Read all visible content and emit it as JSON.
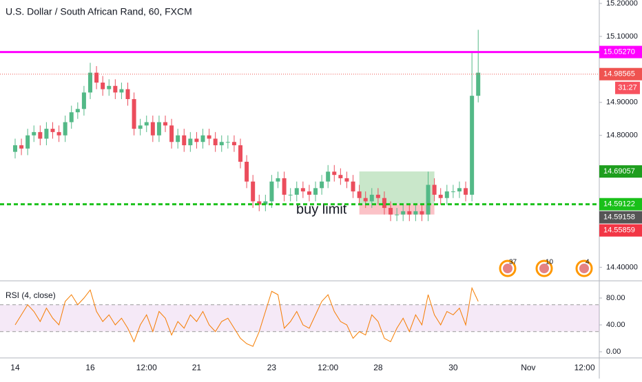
{
  "chart_data": [
    {
      "type": "candlestick",
      "title": "U.S. Dollar / South African Rand, 60, FXCM",
      "x": [
        0,
        1,
        2,
        3,
        4,
        5,
        6,
        7,
        8,
        9,
        10,
        11,
        12,
        13,
        14,
        15,
        16,
        17,
        18,
        19,
        20,
        21,
        22,
        23,
        24,
        25,
        26,
        27,
        28,
        29,
        30,
        31,
        32,
        33,
        34,
        35,
        36,
        37,
        38,
        39,
        40,
        41,
        42,
        43,
        44,
        45,
        46,
        47,
        48,
        49,
        50,
        51,
        52,
        53,
        54,
        55,
        56,
        57,
        58,
        59,
        60,
        61,
        62,
        63,
        64,
        65,
        66,
        67,
        68,
        69,
        70,
        71,
        72,
        73,
        74
      ],
      "open": [
        14.75,
        14.77,
        14.76,
        14.8,
        14.81,
        14.79,
        14.82,
        14.81,
        14.8,
        14.84,
        14.87,
        14.88,
        14.93,
        14.99,
        14.96,
        14.94,
        14.95,
        14.93,
        14.94,
        14.91,
        14.82,
        14.83,
        14.84,
        14.8,
        14.84,
        14.83,
        14.78,
        14.8,
        14.77,
        14.79,
        14.78,
        14.8,
        14.79,
        14.77,
        14.78,
        14.78,
        14.77,
        14.72,
        14.66,
        14.6,
        14.59,
        14.6,
        14.66,
        14.67,
        14.62,
        14.62,
        14.64,
        14.63,
        14.62,
        14.64,
        14.66,
        14.69,
        14.68,
        14.67,
        14.66,
        14.63,
        14.61,
        14.6,
        14.62,
        14.61,
        14.58,
        14.56,
        14.56,
        14.57,
        14.56,
        14.57,
        14.56,
        14.65,
        14.62,
        14.61,
        14.63,
        14.63,
        14.64,
        14.62,
        14.92
      ],
      "high": [
        14.79,
        14.79,
        14.82,
        14.83,
        14.83,
        14.84,
        14.84,
        14.83,
        14.86,
        14.89,
        14.9,
        14.95,
        15.02,
        15.01,
        14.98,
        14.97,
        14.97,
        14.96,
        14.96,
        14.93,
        14.85,
        14.86,
        14.86,
        14.86,
        14.86,
        14.85,
        14.82,
        14.82,
        14.81,
        14.81,
        14.82,
        14.82,
        14.81,
        14.8,
        14.8,
        14.8,
        14.79,
        14.74,
        14.68,
        14.62,
        14.62,
        14.68,
        14.69,
        14.69,
        14.64,
        14.66,
        14.66,
        14.65,
        14.66,
        14.68,
        14.71,
        14.71,
        14.7,
        14.69,
        14.68,
        14.65,
        14.63,
        14.64,
        14.64,
        14.63,
        14.6,
        14.58,
        14.59,
        14.59,
        14.59,
        14.59,
        14.69,
        14.67,
        14.64,
        14.65,
        14.65,
        14.66,
        14.66,
        15.05,
        15.12
      ],
      "low": [
        14.73,
        14.74,
        14.74,
        14.78,
        14.77,
        14.77,
        14.79,
        14.78,
        14.78,
        14.82,
        14.85,
        14.86,
        14.91,
        14.94,
        14.92,
        14.92,
        14.91,
        14.91,
        14.89,
        14.8,
        14.8,
        14.81,
        14.78,
        14.78,
        14.81,
        14.76,
        14.76,
        14.75,
        14.75,
        14.76,
        14.76,
        14.77,
        14.75,
        14.75,
        14.76,
        14.75,
        14.7,
        14.64,
        14.58,
        14.57,
        14.57,
        14.58,
        14.64,
        14.6,
        14.6,
        14.6,
        14.61,
        14.6,
        14.6,
        14.62,
        14.64,
        14.66,
        14.65,
        14.64,
        14.61,
        14.59,
        14.58,
        14.58,
        14.59,
        14.56,
        14.54,
        14.54,
        14.54,
        14.54,
        14.54,
        14.54,
        14.54,
        14.6,
        14.59,
        14.59,
        14.61,
        14.61,
        14.6,
        14.6,
        14.9
      ],
      "close": [
        14.77,
        14.76,
        14.8,
        14.81,
        14.79,
        14.82,
        14.81,
        14.8,
        14.84,
        14.87,
        14.88,
        14.93,
        14.99,
        14.96,
        14.94,
        14.95,
        14.93,
        14.94,
        14.91,
        14.82,
        14.83,
        14.84,
        14.8,
        14.84,
        14.83,
        14.78,
        14.8,
        14.77,
        14.79,
        14.78,
        14.8,
        14.79,
        14.77,
        14.78,
        14.78,
        14.77,
        14.72,
        14.66,
        14.6,
        14.59,
        14.6,
        14.66,
        14.67,
        14.62,
        14.62,
        14.64,
        14.63,
        14.62,
        14.64,
        14.66,
        14.69,
        14.68,
        14.67,
        14.66,
        14.63,
        14.61,
        14.6,
        14.62,
        14.61,
        14.58,
        14.56,
        14.56,
        14.57,
        14.56,
        14.57,
        14.56,
        14.65,
        14.62,
        14.61,
        14.63,
        14.63,
        14.64,
        14.62,
        14.92,
        14.99
      ],
      "up_color": "#53b987",
      "down_color": "#eb4d5c",
      "xlim": [
        -2.42,
        93.35
      ],
      "xticks": [
        {
          "value": 0,
          "label": "14"
        },
        {
          "value": 12,
          "label": "16"
        },
        {
          "value": 21,
          "label": "12:00"
        },
        {
          "value": 29,
          "label": "21"
        },
        {
          "value": 41,
          "label": "23"
        },
        {
          "value": 50,
          "label": "12:00"
        },
        {
          "value": 58,
          "label": "28"
        },
        {
          "value": 70,
          "label": "30"
        },
        {
          "value": 82,
          "label": "Nov"
        },
        {
          "value": 91,
          "label": "12:00"
        }
      ],
      "ylim": [
        14.359,
        15.2104
      ],
      "yticks": [
        {
          "value": 15.2,
          "label": "15.20000"
        },
        {
          "value": 15.1,
          "label": "15.10000"
        },
        {
          "value": 14.9,
          "label": "14.90000"
        },
        {
          "value": 14.8,
          "label": "14.80000"
        },
        {
          "value": 14.4,
          "label": "14.40000"
        }
      ],
      "grid": false,
      "price_tags": [
        {
          "value": 15.0527,
          "label": "15.05270",
          "color": "#ff00ff",
          "line": "solid"
        },
        {
          "value": 14.98565,
          "label": "14.98565",
          "color": "#ef5350",
          "line": "dotted"
        },
        {
          "value": 14.69057,
          "label": "14.69057",
          "color": "#1e9e1e"
        },
        {
          "value": 14.59122,
          "label": "14.59122",
          "color": "#19c019",
          "line": "dashed"
        },
        {
          "value": 14.59158,
          "label": "14.59158",
          "color": "#555555"
        },
        {
          "value": 14.55859,
          "label": "14.55859",
          "color": "#f23645"
        }
      ],
      "countdown": "31:27",
      "position": {
        "x": [
          55,
          67
        ],
        "top": 14.69057,
        "entry": 14.59122,
        "bottom": 14.56
      },
      "annotation": "buy limit",
      "events": [
        {
          "label": "37"
        },
        {
          "label": "10"
        },
        {
          "label": "4"
        }
      ]
    },
    {
      "type": "line",
      "title": "RSI (4, close)",
      "color": "#f57c00",
      "values": [
        40,
        55,
        70,
        60,
        45,
        65,
        50,
        40,
        75,
        85,
        70,
        80,
        92,
        60,
        45,
        55,
        40,
        50,
        35,
        15,
        40,
        55,
        30,
        60,
        50,
        25,
        45,
        35,
        55,
        45,
        60,
        40,
        30,
        45,
        50,
        35,
        20,
        12,
        8,
        30,
        60,
        90,
        85,
        35,
        45,
        60,
        40,
        35,
        55,
        75,
        85,
        60,
        45,
        40,
        20,
        30,
        25,
        55,
        45,
        20,
        15,
        35,
        50,
        30,
        55,
        40,
        85,
        55,
        40,
        60,
        55,
        65,
        40,
        95,
        75
      ],
      "ylim": [
        -9.2,
        103.6
      ],
      "yticks": [
        {
          "value": 80,
          "label": "80.00"
        },
        {
          "value": 40,
          "label": "40.00"
        },
        {
          "value": 0,
          "label": "0.00"
        }
      ],
      "bands": [
        70,
        30
      ],
      "band_color": "#9c27b0"
    }
  ]
}
